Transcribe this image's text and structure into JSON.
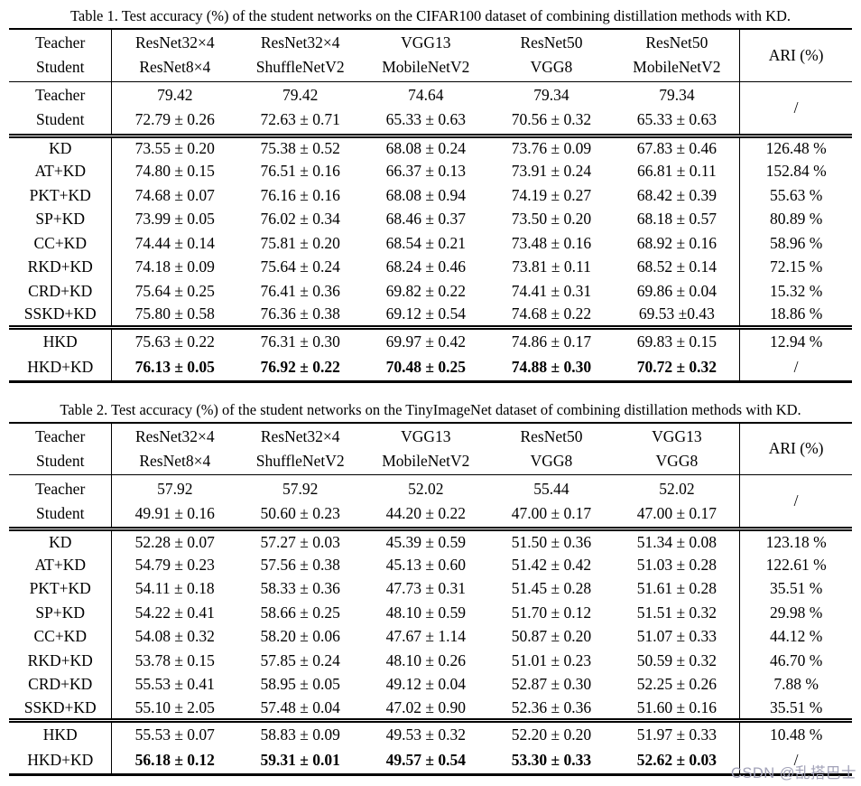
{
  "watermark": {
    "text": "CSDN @乱搭巴士",
    "color": "#a2a2b8"
  },
  "tables": [
    {
      "caption": "Table 1. Test accuracy (%) of the student networks on the CIFAR100 dataset of combining distillation methods with KD.",
      "header": {
        "role_labels": [
          "Teacher",
          "Student"
        ],
        "network_pairs": [
          [
            "ResNet32×4",
            "ResNet8×4"
          ],
          [
            "ResNet32×4",
            "ShuffleNetV2"
          ],
          [
            "VGG13",
            "MobileNetV2"
          ],
          [
            "ResNet50",
            "VGG8"
          ],
          [
            "ResNet50",
            "MobileNetV2"
          ]
        ],
        "ari_label": "ARI (%)"
      },
      "baseline": {
        "row_labels": [
          "Teacher",
          "Student"
        ],
        "teacher": [
          "79.42",
          "79.42",
          "74.64",
          "79.34",
          "79.34"
        ],
        "student": [
          "72.79 ± 0.26",
          "72.63 ± 0.71",
          "65.33 ± 0.63",
          "70.56 ± 0.32",
          "65.33 ± 0.63"
        ],
        "ari": "/"
      },
      "methods": [
        {
          "name": "KD",
          "values": [
            "73.55 ± 0.20",
            "75.38 ± 0.52",
            "68.08 ± 0.24",
            "73.76 ± 0.09",
            "67.83 ± 0.46"
          ],
          "ari": "126.48 %"
        },
        {
          "name": "AT+KD",
          "values": [
            "74.80 ± 0.15",
            "76.51 ± 0.16",
            "66.37 ± 0.13",
            "73.91 ± 0.24",
            "66.81 ± 0.11"
          ],
          "ari": "152.84 %"
        },
        {
          "name": "PKT+KD",
          "values": [
            "74.68 ± 0.07",
            "76.16 ± 0.16",
            "68.08 ± 0.94",
            "74.19 ± 0.27",
            "68.42 ± 0.39"
          ],
          "ari": "55.63 %"
        },
        {
          "name": "SP+KD",
          "values": [
            "73.99 ± 0.05",
            "76.02 ± 0.34",
            "68.46 ± 0.37",
            "73.50 ± 0.20",
            "68.18 ± 0.57"
          ],
          "ari": "80.89 %"
        },
        {
          "name": "CC+KD",
          "values": [
            "74.44 ± 0.14",
            "75.81 ± 0.20",
            "68.54 ± 0.21",
            "73.48 ± 0.16",
            "68.92 ± 0.16"
          ],
          "ari": "58.96 %"
        },
        {
          "name": "RKD+KD",
          "values": [
            "74.18 ± 0.09",
            "75.64 ± 0.24",
            "68.24 ± 0.46",
            "73.81 ± 0.11",
            "68.52 ± 0.14"
          ],
          "ari": "72.15 %"
        },
        {
          "name": "CRD+KD",
          "values": [
            "75.64 ± 0.25",
            "76.41 ± 0.36",
            "69.82 ± 0.22",
            "74.41 ± 0.31",
            "69.86 ± 0.04"
          ],
          "ari": "15.32 %"
        },
        {
          "name": "SSKD+KD",
          "values": [
            "75.80 ± 0.58",
            "76.36 ± 0.38",
            "69.12 ± 0.54",
            "74.68 ± 0.22",
            "69.53 ±0.43"
          ],
          "ari": "18.86 %"
        }
      ],
      "final": [
        {
          "name": "HKD",
          "values": [
            "75.63 ± 0.22",
            "76.31 ± 0.30",
            "69.97 ± 0.42",
            "74.86 ± 0.17",
            "69.83 ± 0.15"
          ],
          "ari": "12.94 %",
          "bold": false
        },
        {
          "name": "HKD+KD",
          "values": [
            "76.13 ± 0.05",
            "76.92 ± 0.22",
            "70.48 ± 0.25",
            "74.88 ± 0.30",
            "70.72 ± 0.32"
          ],
          "ari": "/",
          "bold": true
        }
      ]
    },
    {
      "caption": "Table 2. Test accuracy (%) of the student networks on the TinyImageNet dataset of combining distillation methods with KD.",
      "header": {
        "role_labels": [
          "Teacher",
          "Student"
        ],
        "network_pairs": [
          [
            "ResNet32×4",
            "ResNet8×4"
          ],
          [
            "ResNet32×4",
            "ShuffleNetV2"
          ],
          [
            "VGG13",
            "MobileNetV2"
          ],
          [
            "ResNet50",
            "VGG8"
          ],
          [
            "VGG13",
            "VGG8"
          ]
        ],
        "ari_label": "ARI (%)"
      },
      "baseline": {
        "row_labels": [
          "Teacher",
          "Student"
        ],
        "teacher": [
          "57.92",
          "57.92",
          "52.02",
          "55.44",
          "52.02"
        ],
        "student": [
          "49.91 ± 0.16",
          "50.60 ± 0.23",
          "44.20 ± 0.22",
          "47.00 ± 0.17",
          "47.00 ± 0.17"
        ],
        "ari": "/"
      },
      "methods": [
        {
          "name": "KD",
          "values": [
            "52.28 ± 0.07",
            "57.27 ± 0.03",
            "45.39 ± 0.59",
            "51.50 ± 0.36",
            "51.34 ± 0.08"
          ],
          "ari": "123.18 %"
        },
        {
          "name": "AT+KD",
          "values": [
            "54.79 ± 0.23",
            "57.56 ± 0.38",
            "45.13 ± 0.60",
            "51.42 ± 0.42",
            "51.03 ± 0.28"
          ],
          "ari": "122.61 %"
        },
        {
          "name": "PKT+KD",
          "values": [
            "54.11 ± 0.18",
            "58.33 ± 0.36",
            "47.73 ± 0.31",
            "51.45 ± 0.28",
            "51.61 ± 0.28"
          ],
          "ari": "35.51 %"
        },
        {
          "name": "SP+KD",
          "values": [
            "54.22 ± 0.41",
            "58.66 ± 0.25",
            "48.10 ± 0.59",
            "51.70 ± 0.12",
            "51.51 ± 0.32"
          ],
          "ari": "29.98 %"
        },
        {
          "name": "CC+KD",
          "values": [
            "54.08 ± 0.32",
            "58.20 ± 0.06",
            "47.67 ± 1.14",
            "50.87 ± 0.20",
            "51.07 ± 0.33"
          ],
          "ari": "44.12 %"
        },
        {
          "name": "RKD+KD",
          "values": [
            "53.78 ± 0.15",
            "57.85 ± 0.24",
            "48.10 ± 0.26",
            "51.01 ± 0.23",
            "50.59 ± 0.32"
          ],
          "ari": "46.70 %"
        },
        {
          "name": "CRD+KD",
          "values": [
            "55.53 ± 0.41",
            "58.95 ± 0.05",
            "49.12 ± 0.04",
            "52.87 ± 0.30",
            "52.25 ± 0.26"
          ],
          "ari": "7.88 %"
        },
        {
          "name": "SSKD+KD",
          "values": [
            "55.10 ± 2.05",
            "57.48 ± 0.04",
            "47.02 ± 0.90",
            "52.36 ± 0.36",
            "51.60 ± 0.16"
          ],
          "ari": "35.51 %"
        }
      ],
      "final": [
        {
          "name": "HKD",
          "values": [
            "55.53 ± 0.07",
            "58.83 ± 0.09",
            "49.53 ± 0.32",
            "52.20 ± 0.20",
            "51.97 ± 0.33"
          ],
          "ari": "10.48 %",
          "bold": false
        },
        {
          "name": "HKD+KD",
          "values": [
            "56.18 ± 0.12",
            "59.31 ± 0.01",
            "49.57 ± 0.54",
            "53.30 ± 0.33",
            "52.62 ± 0.03"
          ],
          "ari": "/",
          "bold": true
        }
      ]
    }
  ]
}
